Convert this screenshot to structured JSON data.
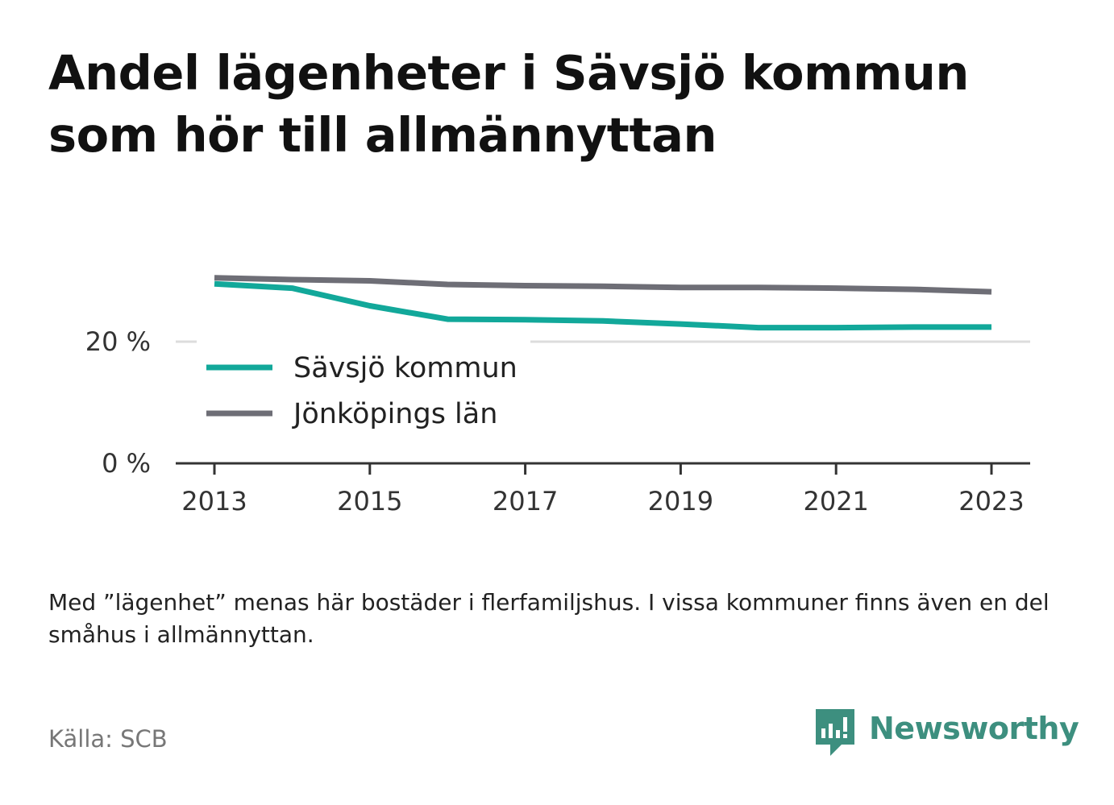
{
  "title": "Andel lägenheter i Sävsjö kommun som hör till allmännyttan",
  "note": "Med ”lägenhet” menas här bostäder i flerfamiljshus. I vissa kommuner finns även en del småhus i allmännyttan.",
  "source": "Källa: SCB",
  "brand": {
    "name": "Newsworthy",
    "icon": "newsworthy-logo-icon"
  },
  "chart_data": {
    "type": "line",
    "x": [
      2013,
      2014,
      2015,
      2016,
      2017,
      2018,
      2019,
      2020,
      2021,
      2022,
      2023
    ],
    "x_ticks": [
      "2013",
      "2015",
      "2017",
      "2019",
      "2021",
      "2023"
    ],
    "y_ticks": [
      "0 %",
      "20 %"
    ],
    "ylim": [
      0,
      30
    ],
    "grid": true,
    "legend_placement": "inside-left",
    "series": [
      {
        "name": "Sävsjö kommun",
        "color": "#12a89a",
        "values": [
          29.5,
          28.8,
          25.9,
          23.7,
          23.6,
          23.4,
          22.9,
          22.3,
          22.3,
          22.4,
          22.4
        ]
      },
      {
        "name": "Jönköpings län",
        "color": "#6e6e76",
        "values": [
          30.5,
          30.2,
          30.0,
          29.4,
          29.2,
          29.1,
          28.9,
          28.9,
          28.8,
          28.6,
          28.2
        ]
      }
    ]
  }
}
